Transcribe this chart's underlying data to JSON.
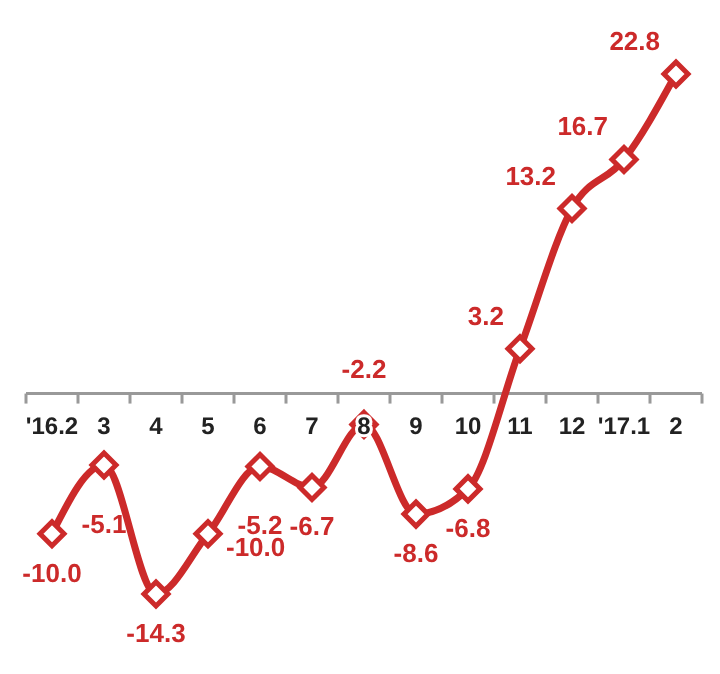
{
  "chart_data": {
    "type": "line",
    "categories": [
      "'16.2",
      "3",
      "4",
      "5",
      "6",
      "7",
      "8",
      "9",
      "10",
      "11",
      "12",
      "'17.1",
      "2"
    ],
    "series": [
      {
        "color": "#cc2a2a",
        "values": [
          -10.0,
          -5.1,
          -14.3,
          -10.0,
          -5.2,
          -6.7,
          -2.2,
          -8.6,
          -6.8,
          3.2,
          13.2,
          16.7,
          22.8
        ],
        "value_labels": [
          "-10.0",
          "-5.1",
          "-14.3",
          "-10.0",
          "-5.2",
          "-6.7",
          "-2.2",
          "-8.6",
          "-6.8",
          "3.2",
          "13.2",
          "16.7",
          "22.8"
        ]
      }
    ],
    "marker": "diamond",
    "line_style": "solid"
  }
}
